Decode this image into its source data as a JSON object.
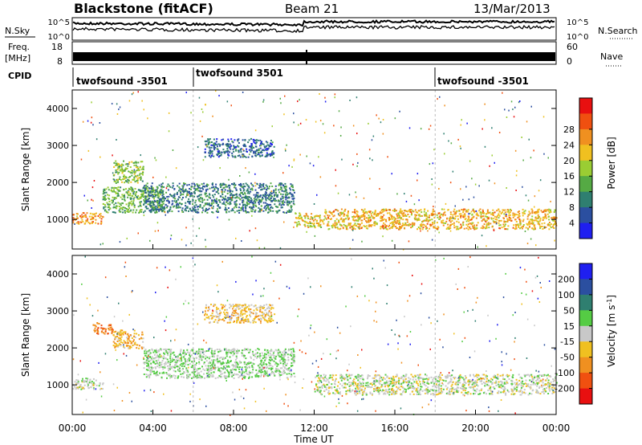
{
  "header": {
    "station": "Blackstone (fitACF)",
    "beam": "Beam 21",
    "date": "13/Mar/2013"
  },
  "noise_panel": {
    "left_label": "N.Sky",
    "right_label": "N.Search",
    "left_ticks": [
      "10^5",
      "10^0"
    ],
    "right_ticks": [
      "10^5",
      "10^0"
    ]
  },
  "freq_panel": {
    "left_label_top": "Freq.",
    "left_label_bottom": "[MHz]",
    "left_ticks": [
      "18",
      "8"
    ],
    "right_label": "Nave",
    "right_ticks": [
      "60",
      "0"
    ]
  },
  "cpid": {
    "label": "CPID",
    "segments": [
      {
        "start_hour": 0,
        "label": "twofsound -3501"
      },
      {
        "start_hour": 6,
        "label": "twofsound 3501"
      },
      {
        "start_hour": 18,
        "label": "twofsound -3501"
      }
    ]
  },
  "x_axis": {
    "label": "Time UT",
    "ticks": [
      "00:00",
      "04:00",
      "08:00",
      "12:00",
      "16:00",
      "20:00",
      "00:00"
    ]
  },
  "chart_data": [
    {
      "type": "heatmap",
      "title": "",
      "xlabel": "Time UT",
      "ylabel": "Slant Range [km]",
      "xlim_hours": [
        0,
        24
      ],
      "ylim_km": [
        200,
        4500
      ],
      "yticks": [
        "1000",
        "2000",
        "3000",
        "4000"
      ],
      "colorbar": {
        "label": "Power [dB]",
        "ticks": [
          "4",
          "8",
          "12",
          "16",
          "20",
          "24",
          "28"
        ],
        "range": [
          0,
          30
        ],
        "colors": [
          "#1f1ff0",
          "#2b4fa0",
          "#2f7f70",
          "#55aa44",
          "#9acd33",
          "#f0c020",
          "#f09020",
          "#f05010",
          "#e81010"
        ]
      },
      "regions": [
        {
          "t": [
            0.0,
            1.5
          ],
          "range": [
            900,
            1200
          ],
          "level": 22
        },
        {
          "t": [
            1.5,
            4.5
          ],
          "range": [
            1200,
            1900
          ],
          "level": 12
        },
        {
          "t": [
            2.0,
            3.5
          ],
          "range": [
            2000,
            2600
          ],
          "level": 14
        },
        {
          "t": [
            3.5,
            11.0
          ],
          "range": [
            1200,
            2000
          ],
          "level": 7
        },
        {
          "t": [
            6.5,
            10.0
          ],
          "range": [
            2700,
            3200
          ],
          "level": 5
        },
        {
          "t": [
            11.0,
            12.5
          ],
          "range": [
            800,
            1200
          ],
          "level": 18
        },
        {
          "t": [
            12.5,
            24.0
          ],
          "range": [
            750,
            1300
          ],
          "level": 20
        }
      ]
    },
    {
      "type": "heatmap",
      "title": "",
      "xlabel": "Time UT",
      "ylabel": "Slant Range [km]",
      "xlim_hours": [
        0,
        24
      ],
      "ylim_km": [
        200,
        4500
      ],
      "yticks": [
        "1000",
        "2000",
        "3000",
        "4000"
      ],
      "colorbar": {
        "label": "Velocity [m s^-1]",
        "ticks": [
          "200",
          "100",
          "50",
          "15",
          "-15",
          "-50",
          "-100",
          "-200"
        ],
        "range": [
          -250,
          250
        ],
        "colors": [
          "#1f1ff0",
          "#2b4fa0",
          "#2f7f70",
          "#55cc44",
          "#c8c8c8",
          "#f0c020",
          "#f09020",
          "#f05010",
          "#e81010"
        ]
      },
      "regions": [
        {
          "t": [
            0.0,
            1.5
          ],
          "range": [
            900,
            1200
          ],
          "level": 0
        },
        {
          "t": [
            1.0,
            2.0
          ],
          "range": [
            2400,
            2700
          ],
          "level": -150
        },
        {
          "t": [
            2.0,
            3.5
          ],
          "range": [
            2000,
            2500
          ],
          "level": -80
        },
        {
          "t": [
            3.5,
            11.0
          ],
          "range": [
            1200,
            2000
          ],
          "level": 30
        },
        {
          "t": [
            6.5,
            10.0
          ],
          "range": [
            2700,
            3200
          ],
          "level": -60
        },
        {
          "t": [
            12.0,
            24.0
          ],
          "range": [
            750,
            1300
          ],
          "level": 0
        }
      ]
    }
  ]
}
